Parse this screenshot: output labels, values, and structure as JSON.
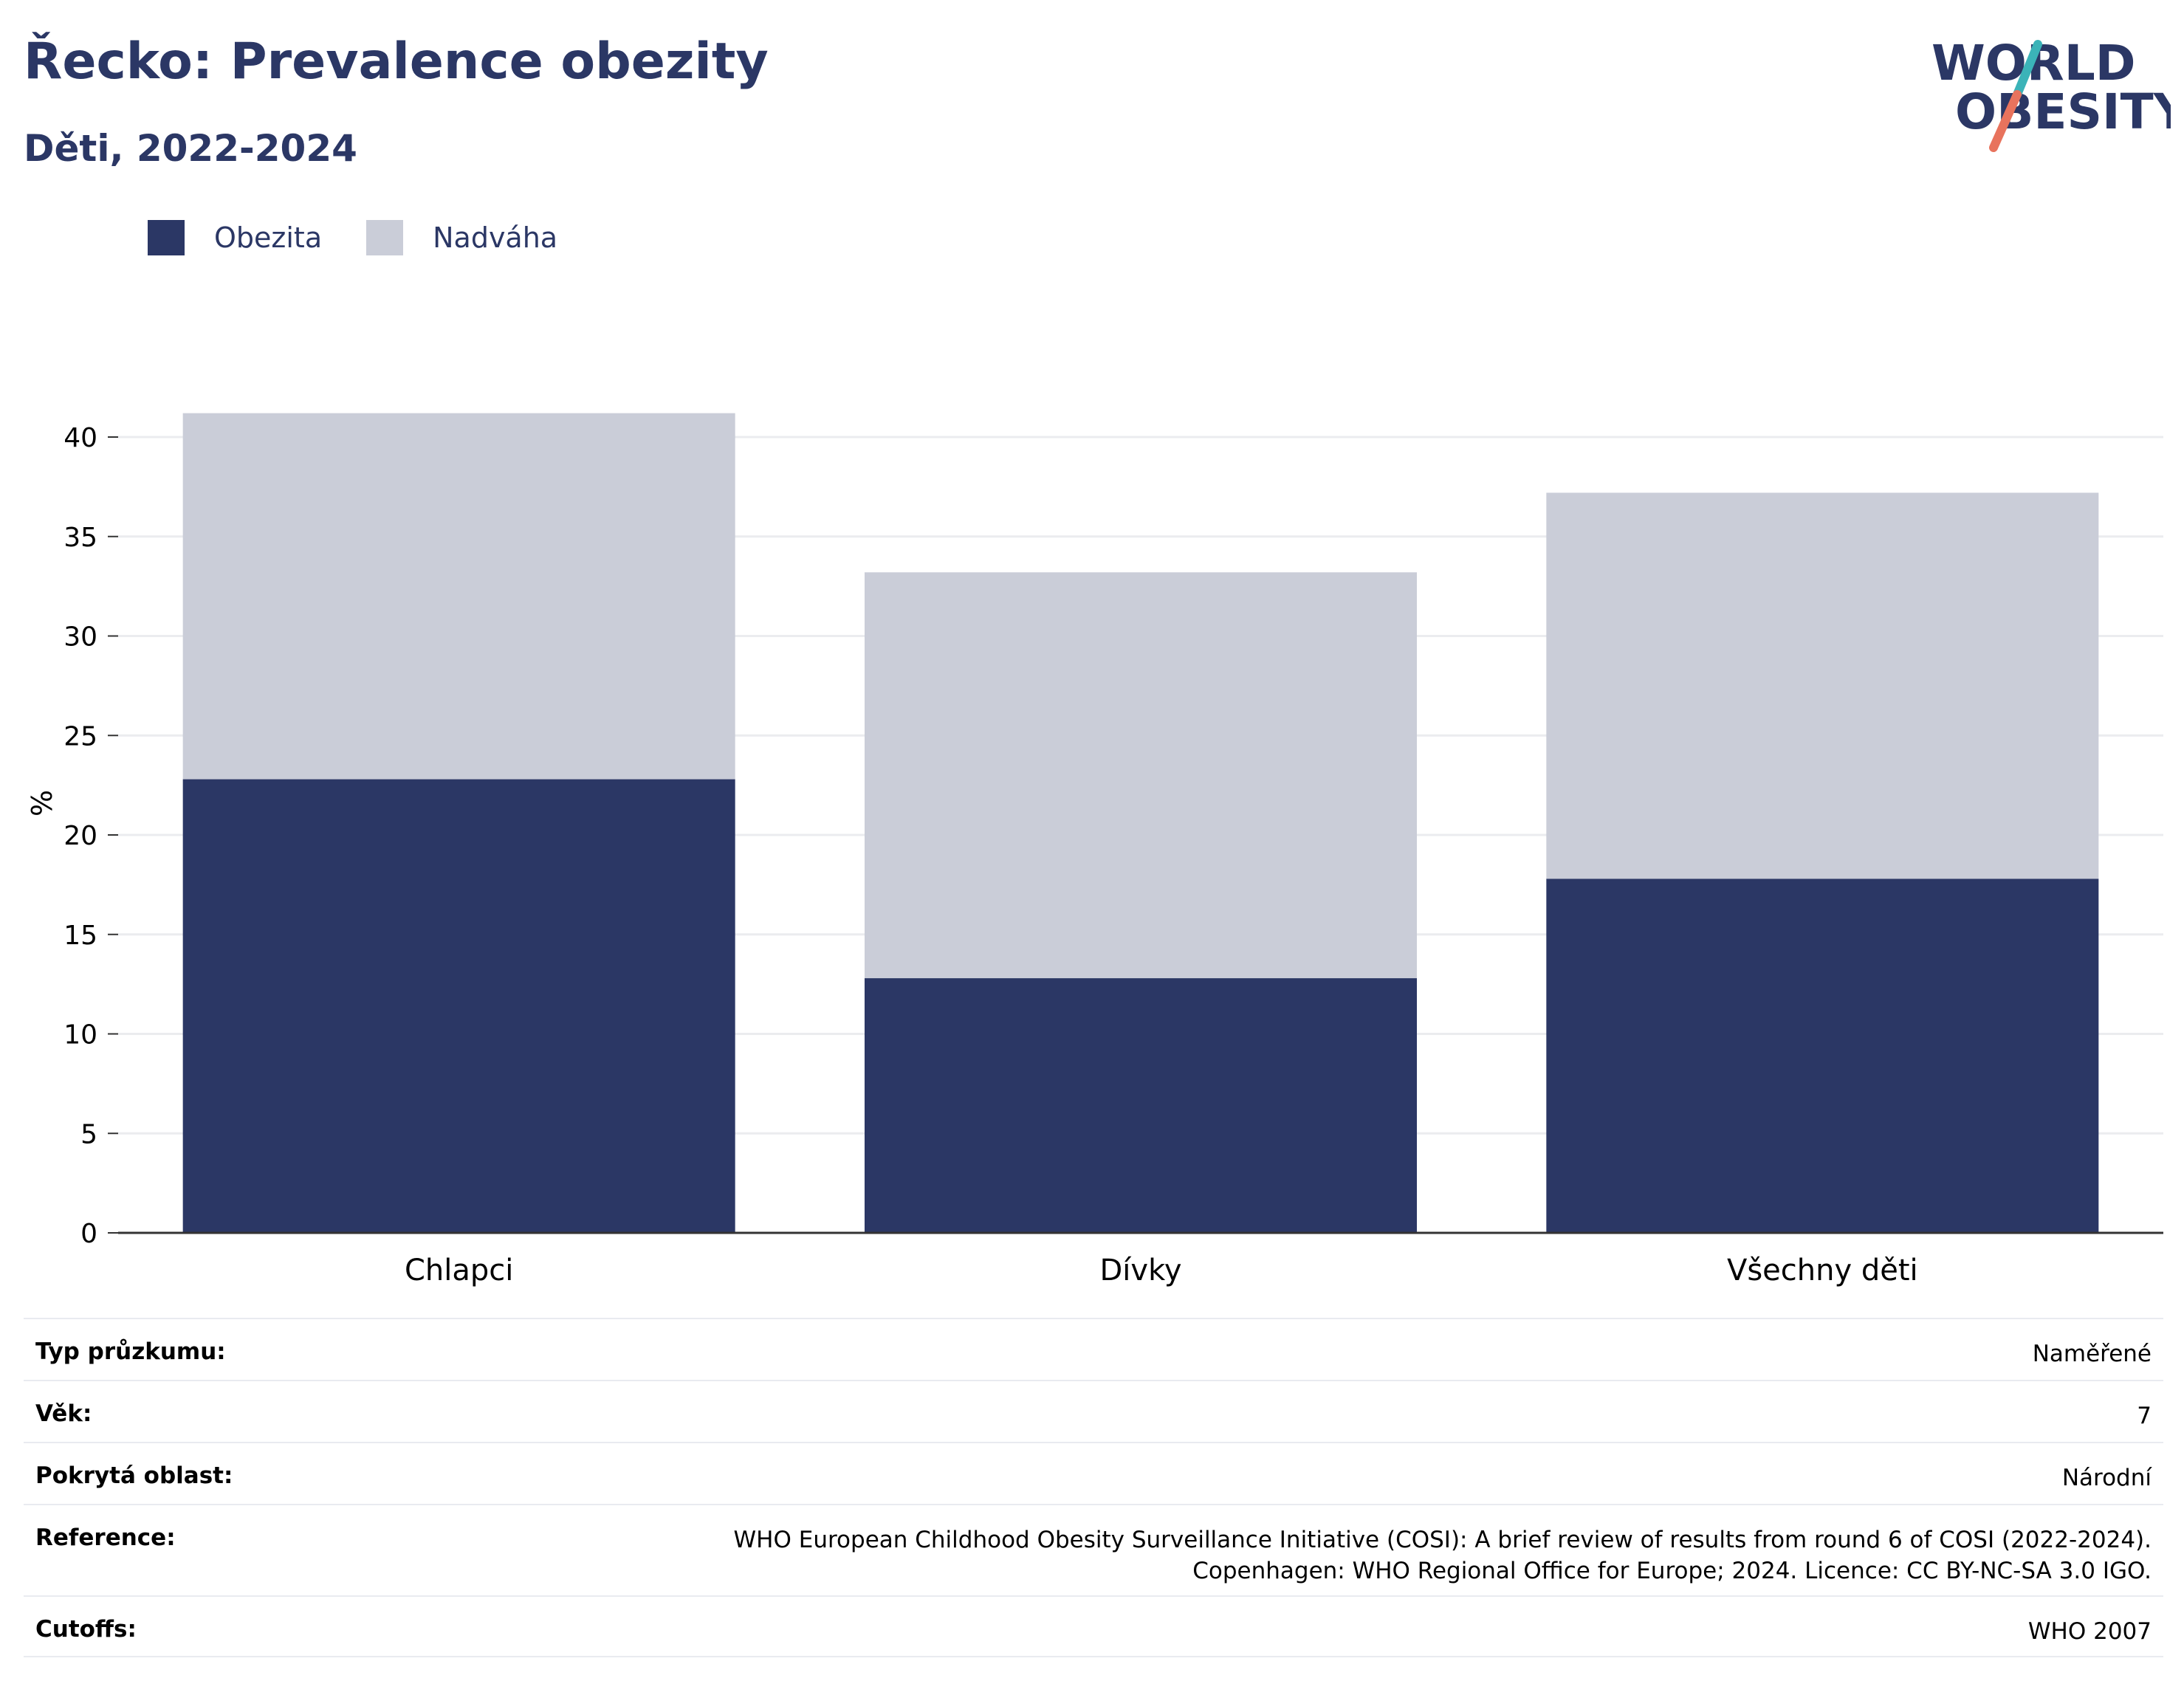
{
  "header": {
    "title": "Řecko: Prevalence obezity",
    "subtitle": "Děti, 2022-2024"
  },
  "logo": {
    "line1": "WORLD",
    "line2": "OBESITY",
    "colors": {
      "text": "#2b3765",
      "slash_top": "#3bb3b8",
      "slash_bottom": "#e8735d"
    }
  },
  "legend": [
    {
      "label": "Obezita",
      "color": "#2b3765"
    },
    {
      "label": "Nadváha",
      "color": "#cacdd8"
    }
  ],
  "chart_data": {
    "type": "bar",
    "stacked": true,
    "categories": [
      "Chlapci",
      "Dívky",
      "Všechny děti"
    ],
    "series": [
      {
        "name": "Obezita",
        "color": "#2b3765",
        "values": [
          22.8,
          12.8,
          17.8
        ]
      },
      {
        "name": "Nadváha",
        "color": "#cacdd8",
        "values": [
          18.4,
          20.4,
          19.4
        ]
      }
    ],
    "ylabel": "%",
    "ylim": [
      0,
      42
    ],
    "yticks": [
      0,
      5,
      10,
      15,
      20,
      25,
      30,
      35,
      40
    ],
    "grid": true,
    "legend_position": "top-left"
  },
  "info": [
    {
      "label": "Typ průzkumu:",
      "value": [
        "Naměřené"
      ]
    },
    {
      "label": "Věk:",
      "value": [
        "7"
      ]
    },
    {
      "label": "Pokrytá oblast:",
      "value": [
        "Národní"
      ]
    },
    {
      "label": "Reference:",
      "value": [
        "WHO European Childhood Obesity Surveillance Initiative (COSI): A brief review of results from round 6 of COSI (2022-2024).",
        "Copenhagen: WHO Regional Office for Europe; 2024. Licence: CC BY-NC-SA 3.0 IGO."
      ]
    },
    {
      "label": "Cutoffs:",
      "value": [
        "WHO 2007"
      ]
    }
  ]
}
